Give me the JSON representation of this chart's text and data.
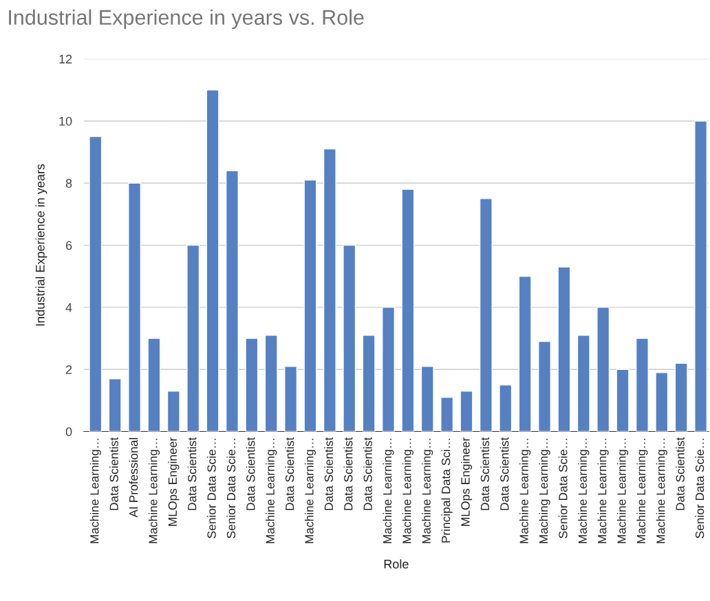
{
  "chart_data": {
    "type": "bar",
    "title": "Industrial Experience in years vs. Role",
    "xlabel": "Role",
    "ylabel": "Industrial Experience in years",
    "categories": [
      "Machine Learning…",
      "Data Scientist",
      "AI Professional",
      "Machine Learning…",
      "MLOps Engineer",
      "Data Scientist",
      "Senior Data Scie…",
      "Senior Data Scie…",
      "Data Scientist",
      "Machine Learning…",
      "Data Scientist",
      "Machine Learning…",
      "Data Scientist",
      "Data Scientist",
      "Data Scientist",
      "Machine Learning…",
      "Machine Learning…",
      "Machine Learning…",
      "Principal Data Sci…",
      "MLOps Engineer",
      "Data Scientist",
      "Data Scientist",
      "Machine Learning…",
      "Maching Learning…",
      "Senior Data Scie…",
      "Machine Learning…",
      "Machine Learning…",
      "Machine Learning…",
      "Machine Learning…",
      "Machine Learning…",
      "Data Scientist",
      "Senior Data Scie…"
    ],
    "values": [
      9.5,
      1.7,
      8,
      3,
      1.3,
      6,
      11,
      8.4,
      3,
      3.1,
      2.1,
      8.1,
      9.1,
      6,
      3.1,
      4,
      7.8,
      2.1,
      1.1,
      1.3,
      7.5,
      1.5,
      5,
      2.9,
      5.3,
      3.1,
      4,
      2,
      3,
      1.9,
      2.2,
      10
    ],
    "color": "#5580c2",
    "ylim": [
      0,
      12
    ],
    "yticks": [
      0,
      2,
      4,
      6,
      8,
      10,
      12
    ],
    "grid": "y",
    "legend": false
  }
}
